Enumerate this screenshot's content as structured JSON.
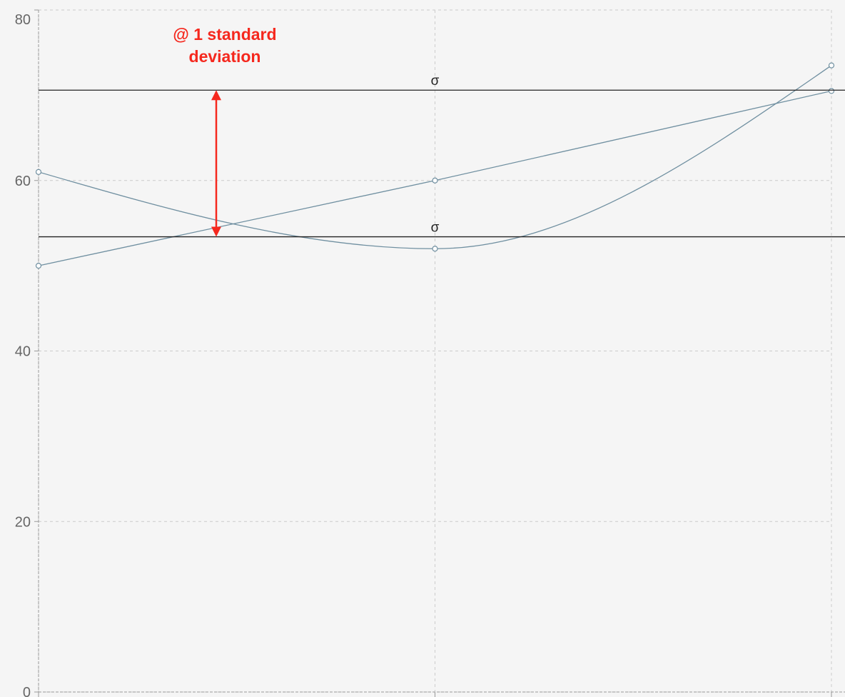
{
  "chart_data": {
    "type": "line",
    "title": "",
    "xlabel": "",
    "ylabel": "",
    "x": [
      0,
      1,
      2
    ],
    "ylim": [
      0,
      80
    ],
    "yticks": [
      0,
      20,
      40,
      60,
      80
    ],
    "grid": true,
    "series": [
      {
        "values": [
          50,
          60,
          70.5
        ],
        "curve": "linear",
        "color": "#6f8fa0"
      },
      {
        "values": [
          61,
          52,
          73.5
        ],
        "curve": "smooth",
        "color": "#6f8fa0"
      }
    ],
    "mark_lines": [
      {
        "value": 53.4,
        "label": "σ"
      },
      {
        "value": 70.6,
        "label": "σ"
      }
    ],
    "annotation": {
      "lines": [
        "@ 1 standard",
        "deviation"
      ],
      "color": "#f5281e",
      "arrow_from": 70.6,
      "arrow_to": 53.4
    }
  }
}
